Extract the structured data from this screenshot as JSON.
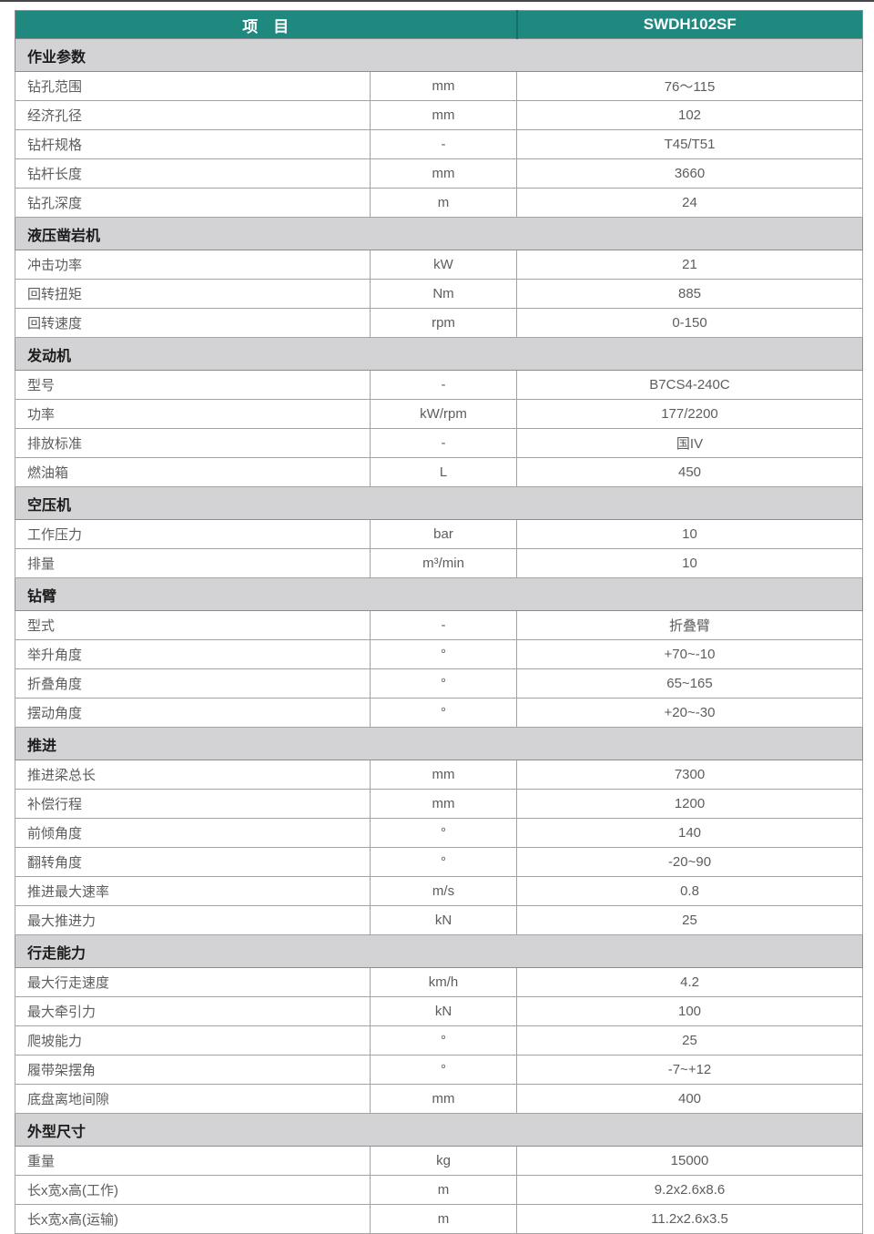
{
  "colors": {
    "accent_teal": "#20897f",
    "section_bg": "#d3d3d5",
    "header_text": "#ffffff"
  },
  "header": {
    "item_label": "项　目",
    "model": "SWDH102SF"
  },
  "sections": [
    {
      "title": "作业参数",
      "rows": [
        {
          "name": "钻孔范围",
          "unit": "mm",
          "value": "76～115"
        },
        {
          "name": "经济孔径",
          "unit": "mm",
          "value": "102"
        },
        {
          "name": "钻杆规格",
          "unit": "-",
          "value": "T45/T51"
        },
        {
          "name": "钻杆长度",
          "unit": "mm",
          "value": "3660"
        },
        {
          "name": "钻孔深度",
          "unit": "m",
          "value": "24"
        }
      ]
    },
    {
      "title": "液压凿岩机",
      "rows": [
        {
          "name": "冲击功率",
          "unit": "kW",
          "value": "21"
        },
        {
          "name": "回转扭矩",
          "unit": "Nm",
          "value": "885"
        },
        {
          "name": "回转速度",
          "unit": "rpm",
          "value": "0-150"
        }
      ]
    },
    {
      "title": "发动机",
      "rows": [
        {
          "name": "型号",
          "unit": "-",
          "value": "B7CS4-240C"
        },
        {
          "name": "功率",
          "unit": "kW/rpm",
          "value": "177/2200"
        },
        {
          "name": "排放标准",
          "unit": "-",
          "value": "国IV"
        },
        {
          "name": "燃油箱",
          "unit": "L",
          "value": "450"
        }
      ]
    },
    {
      "title": "空压机",
      "rows": [
        {
          "name": "工作压力",
          "unit": "bar",
          "value": "10"
        },
        {
          "name": "排量",
          "unit": "m³/min",
          "value": "10"
        }
      ]
    },
    {
      "title": "钻臂",
      "rows": [
        {
          "name": "型式",
          "unit": "-",
          "value": "折叠臂"
        },
        {
          "name": "举升角度",
          "unit": "°",
          "value": "+70~-10"
        },
        {
          "name": "折叠角度",
          "unit": "°",
          "value": "65~165"
        },
        {
          "name": "摆动角度",
          "unit": "°",
          "value": "+20~-30"
        }
      ]
    },
    {
      "title": "推进",
      "rows": [
        {
          "name": "推进梁总长",
          "unit": "mm",
          "value": "7300"
        },
        {
          "name": "补偿行程",
          "unit": "mm",
          "value": "1200"
        },
        {
          "name": "前倾角度",
          "unit": "°",
          "value": "140"
        },
        {
          "name": "翻转角度",
          "unit": "°",
          "value": "-20~90"
        },
        {
          "name": "推进最大速率",
          "unit": "m/s",
          "value": "0.8"
        },
        {
          "name": "最大推进力",
          "unit": "kN",
          "value": "25"
        }
      ]
    },
    {
      "title": "行走能力",
      "rows": [
        {
          "name": "最大行走速度",
          "unit": "km/h",
          "value": "4.2"
        },
        {
          "name": "最大牵引力",
          "unit": "kN",
          "value": "100"
        },
        {
          "name": "爬坡能力",
          "unit": "°",
          "value": "25"
        },
        {
          "name": "履带架摆角",
          "unit": "°",
          "value": "-7~+12"
        },
        {
          "name": "底盘离地间隙",
          "unit": "mm",
          "value": "400"
        }
      ]
    },
    {
      "title": "外型尺寸",
      "rows": [
        {
          "name": "重量",
          "unit": "kg",
          "value": "15000"
        },
        {
          "name": "长x宽x高(工作)",
          "unit": "m",
          "value": "9.2x2.6x8.6"
        },
        {
          "name": "长x宽x高(运输)",
          "unit": "m",
          "value": "11.2x2.6x3.5"
        }
      ]
    }
  ]
}
